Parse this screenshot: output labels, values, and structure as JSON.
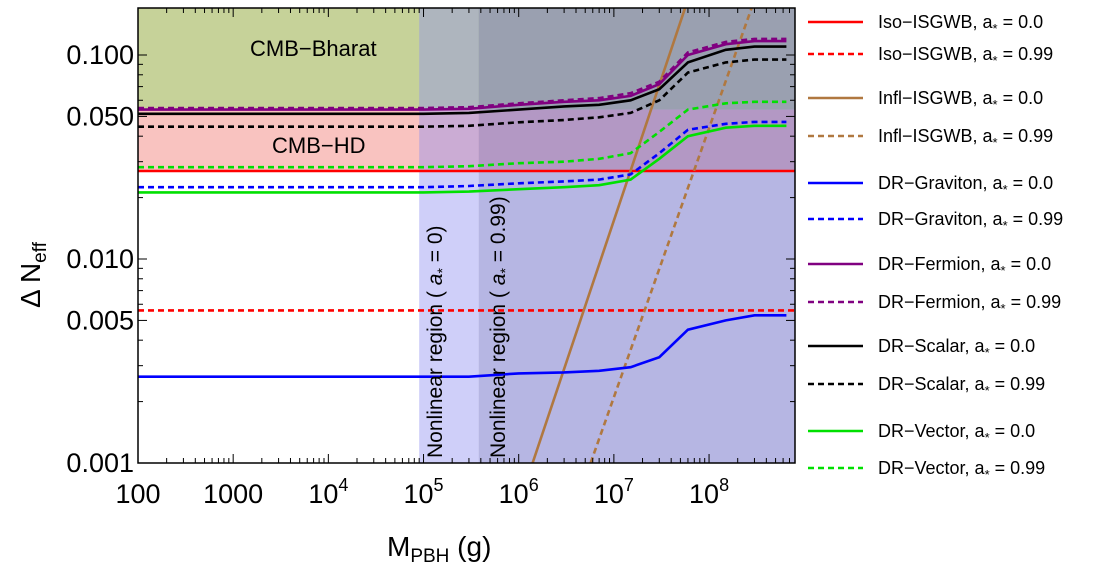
{
  "chart_data": {
    "type": "line",
    "xlabel": "M_PBH (g)",
    "ylabel": "Δ N_eff",
    "x_scale": "log",
    "y_scale": "log",
    "xlim": [
      100,
      800000000
    ],
    "ylim": [
      0.001,
      0.17
    ],
    "x_ticks": [
      {
        "value": 100,
        "label": "100"
      },
      {
        "value": 1000,
        "label": "1000"
      },
      {
        "value": 10000,
        "label": "10",
        "exp": "4"
      },
      {
        "value": 100000,
        "label": "10",
        "exp": "5"
      },
      {
        "value": 1000000,
        "label": "10",
        "exp": "6"
      },
      {
        "value": 10000000,
        "label": "10",
        "exp": "7"
      },
      {
        "value": 100000000,
        "label": "10",
        "exp": "8"
      }
    ],
    "y_ticks": [
      {
        "value": 0.001,
        "label": "0.001"
      },
      {
        "value": 0.005,
        "label": "0.005"
      },
      {
        "value": 0.01,
        "label": "0.010"
      },
      {
        "value": 0.05,
        "label": "0.050"
      },
      {
        "value": 0.1,
        "label": "0.100"
      }
    ],
    "bands": [
      {
        "name": "CMB−Bharat",
        "y_min": 0.054,
        "color": "#c6d299"
      },
      {
        "name": "CMB−HD",
        "y_min": 0.027,
        "y_max": 0.054,
        "color": "#f9c3c0"
      }
    ],
    "regions": [
      {
        "label": "Nonlinear region ( a* = 0)",
        "x_min": 90000,
        "x_max": 380000,
        "color": "#8c8cf0"
      },
      {
        "label": "Nonlinear region ( a* = 0.99)",
        "x_min": 380000,
        "x_max": 800000000,
        "color": "#6e6ec8"
      }
    ],
    "series": [
      {
        "name": "Iso−ISGWB, a* = 0.0",
        "color": "#ff0000",
        "dash": false,
        "x": [
          100,
          800000000
        ],
        "y": [
          0.027,
          0.027
        ]
      },
      {
        "name": "Iso−ISGWB, a* = 0.99",
        "color": "#ff0000",
        "dash": true,
        "x": [
          100,
          800000000
        ],
        "y": [
          0.0056,
          0.0056
        ]
      },
      {
        "name": "Infl−ISGWB, a* = 0.0",
        "color": "#b07840",
        "dash": false,
        "x": [
          1400000,
          56000000
        ],
        "y": [
          0.001,
          0.17
        ]
      },
      {
        "name": "Infl−ISGWB, a* = 0.99",
        "color": "#b07840",
        "dash": true,
        "x": [
          5700000,
          280000000
        ],
        "y": [
          0.001,
          0.17
        ]
      },
      {
        "name": "DR−Graviton, a* = 0.0",
        "color": "#0000ff",
        "dash": false,
        "x": [
          100,
          100000,
          300000,
          1000000,
          3000000,
          7000000,
          15000000,
          30000000,
          60000000,
          150000000,
          300000000,
          650000000
        ],
        "y": [
          0.00265,
          0.00265,
          0.00265,
          0.00275,
          0.00278,
          0.00283,
          0.00295,
          0.0033,
          0.0045,
          0.005,
          0.0053,
          0.0053
        ]
      },
      {
        "name": "DR−Graviton, a* = 0.99",
        "color": "#0000ff",
        "dash": true,
        "x": [
          100,
          100000,
          300000,
          1000000,
          3000000,
          7000000,
          15000000,
          30000000,
          60000000,
          150000000,
          300000000,
          650000000
        ],
        "y": [
          0.0225,
          0.0225,
          0.0228,
          0.0235,
          0.024,
          0.0245,
          0.026,
          0.033,
          0.043,
          0.046,
          0.047,
          0.047
        ]
      },
      {
        "name": "DR−Fermion, a* = 0.0",
        "color": "#800080",
        "dash": false,
        "x": [
          100,
          100000,
          300000,
          1000000,
          3000000,
          7000000,
          15000000,
          30000000,
          60000000,
          150000000,
          300000000,
          650000000
        ],
        "y": [
          0.054,
          0.054,
          0.0545,
          0.057,
          0.059,
          0.06,
          0.063,
          0.072,
          0.1,
          0.113,
          0.117,
          0.117
        ]
      },
      {
        "name": "DR−Fermion, a* = 0.99",
        "color": "#800080",
        "dash": true,
        "x": [
          100,
          100000,
          300000,
          1000000,
          3000000,
          7000000,
          15000000,
          30000000,
          60000000,
          150000000,
          300000000,
          650000000
        ],
        "y": [
          0.055,
          0.055,
          0.0555,
          0.058,
          0.06,
          0.0615,
          0.065,
          0.074,
          0.103,
          0.116,
          0.12,
          0.12
        ]
      },
      {
        "name": "DR−Scalar, a* = 0.0",
        "color": "#000000",
        "dash": false,
        "x": [
          100,
          100000,
          300000,
          1000000,
          3000000,
          7000000,
          15000000,
          30000000,
          60000000,
          150000000,
          300000000,
          650000000
        ],
        "y": [
          0.0515,
          0.0515,
          0.052,
          0.054,
          0.056,
          0.057,
          0.06,
          0.068,
          0.092,
          0.106,
          0.11,
          0.11
        ]
      },
      {
        "name": "DR−Scalar, a* = 0.99",
        "color": "#000000",
        "dash": true,
        "x": [
          100,
          100000,
          300000,
          1000000,
          3000000,
          7000000,
          15000000,
          30000000,
          60000000,
          150000000,
          300000000,
          650000000
        ],
        "y": [
          0.0445,
          0.0445,
          0.045,
          0.0468,
          0.048,
          0.0495,
          0.052,
          0.06,
          0.082,
          0.092,
          0.095,
          0.095
        ]
      },
      {
        "name": "DR−Vector, a* = 0.0",
        "color": "#00e000",
        "dash": false,
        "x": [
          100,
          100000,
          300000,
          1000000,
          3000000,
          7000000,
          15000000,
          30000000,
          60000000,
          150000000,
          300000000,
          650000000
        ],
        "y": [
          0.0212,
          0.0212,
          0.0214,
          0.022,
          0.0225,
          0.023,
          0.0245,
          0.031,
          0.04,
          0.044,
          0.045,
          0.045
        ]
      },
      {
        "name": "DR−Vector, a* = 0.99",
        "color": "#00e000",
        "dash": true,
        "x": [
          100,
          100000,
          300000,
          1000000,
          3000000,
          7000000,
          15000000,
          30000000,
          60000000,
          150000000,
          300000000,
          650000000
        ],
        "y": [
          0.0282,
          0.0282,
          0.0285,
          0.0295,
          0.03,
          0.031,
          0.033,
          0.042,
          0.054,
          0.058,
          0.059,
          0.059
        ]
      }
    ]
  },
  "legend": [
    {
      "prefix": "Iso−ISGWB, a",
      "suffix": " = 0.0",
      "color": "#ff0000",
      "dash": false
    },
    {
      "prefix": "Iso−ISGWB, a",
      "suffix": " = 0.99",
      "color": "#ff0000",
      "dash": true
    },
    {
      "prefix": "Infl−ISGWB, a",
      "suffix": " = 0.0",
      "color": "#b07840",
      "dash": false
    },
    {
      "prefix": "Infl−ISGWB, a",
      "suffix": " = 0.99",
      "color": "#b07840",
      "dash": true
    },
    {
      "prefix": "DR−Graviton, a",
      "suffix": " = 0.0",
      "color": "#0000ff",
      "dash": false
    },
    {
      "prefix": "DR−Graviton, a",
      "suffix": " = 0.99",
      "color": "#0000ff",
      "dash": true
    },
    {
      "prefix": "DR−Fermion, a",
      "suffix": " = 0.0",
      "color": "#800080",
      "dash": false
    },
    {
      "prefix": "DR−Fermion, a",
      "suffix": " = 0.99",
      "color": "#800080",
      "dash": true
    },
    {
      "prefix": "DR−Scalar, a",
      "suffix": " = 0.0",
      "color": "#000000",
      "dash": false
    },
    {
      "prefix": "DR−Scalar, a",
      "suffix": " = 0.99",
      "color": "#000000",
      "dash": true
    },
    {
      "prefix": "DR−Vector, a",
      "suffix": " = 0.0",
      "color": "#00e000",
      "dash": false
    },
    {
      "prefix": "DR−Vector, a",
      "suffix": " = 0.99",
      "color": "#00e000",
      "dash": true
    }
  ],
  "axis_labels": {
    "x_main": "M",
    "x_sub": "PBH",
    "x_unit": " (g)",
    "y_main": "Δ N",
    "y_sub": "eff"
  },
  "region_labels": {
    "a0_prefix": "Nonlinear region ( ",
    "a0_var": "a",
    "a0_star": "*",
    "a0_suffix": " = 0)",
    "a99_prefix": "Nonlinear region ( ",
    "a99_var": "a",
    "a99_star": "*",
    "a99_suffix": " = 0.99)"
  },
  "band_labels": {
    "bharat": "CMB−Bharat",
    "hd": "CMB−HD"
  },
  "legend_star": "*"
}
